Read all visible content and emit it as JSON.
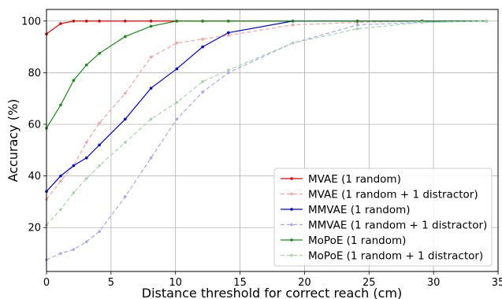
{
  "chart_data": {
    "type": "line",
    "xlabel": "Distance threshold for correct reach (cm)",
    "ylabel": "Accuracy (%)",
    "xlim": [
      0,
      35
    ],
    "ylim": [
      3,
      104.5
    ],
    "xticks": [
      0,
      5,
      10,
      15,
      20,
      25,
      30,
      35
    ],
    "yticks": [
      20,
      40,
      60,
      80,
      100
    ],
    "xtick_labels": [
      "0",
      "5",
      "10",
      "15",
      "20",
      "25",
      "30",
      "35"
    ],
    "ytick_labels": [
      "20",
      "40",
      "60",
      "80",
      "100"
    ],
    "grid": true,
    "legend_position": "bottom-right",
    "series": [
      {
        "name": "MVAE (1 random)",
        "color": "#e00000",
        "style": "solid",
        "x": [
          0,
          1.1,
          2.1,
          3.1,
          4.1,
          6.1,
          8.1,
          10.1,
          12.1,
          14.1,
          19.1,
          24.1,
          29.1,
          34.1
        ],
        "y": [
          95,
          99,
          100,
          100,
          100,
          100,
          100,
          100,
          100,
          100,
          100,
          100,
          100,
          100
        ]
      },
      {
        "name": "MVAE (1 random + 1 distractor)",
        "color": "#f4a4a4",
        "style": "dashed",
        "x": [
          0,
          1.1,
          2.1,
          3.1,
          4.1,
          6.1,
          8.1,
          10.1,
          12.1,
          14.1,
          19.1,
          24.1,
          29.1,
          34.1
        ],
        "y": [
          31,
          38,
          44,
          53,
          60.5,
          72,
          86,
          91.5,
          93,
          94.5,
          98.5,
          99.5,
          100,
          100
        ]
      },
      {
        "name": "MMVAE (1 random)",
        "color": "#0000e0",
        "style": "solid",
        "x": [
          0,
          1.1,
          2.1,
          3.1,
          4.1,
          6.1,
          8.1,
          10.1,
          12.1,
          14.1,
          19.1,
          24.1,
          29.1,
          34.1
        ],
        "y": [
          34,
          40,
          44,
          47,
          52,
          62,
          74,
          81.5,
          90,
          95.5,
          100,
          100,
          100,
          100
        ]
      },
      {
        "name": "MMVAE (1 random + 1 distractor)",
        "color": "#a8a8f4",
        "style": "dashed",
        "x": [
          0,
          1.1,
          2.1,
          3.1,
          4.1,
          6.1,
          8.1,
          10.1,
          12.1,
          14.1,
          19.1,
          24.1,
          29.1,
          34.1
        ],
        "y": [
          7.5,
          10,
          11.5,
          14.5,
          18.5,
          32,
          47,
          62,
          72.5,
          80,
          91.5,
          98.5,
          99.5,
          100
        ]
      },
      {
        "name": "MoPoE (1 random)",
        "color": "#1a8a1a",
        "style": "solid",
        "x": [
          0,
          1.1,
          2.1,
          3.1,
          4.1,
          6.1,
          8.1,
          10.1,
          12.1,
          14.1,
          19.1,
          24.1,
          29.1,
          34.1
        ],
        "y": [
          58.5,
          67.5,
          77,
          83,
          87.5,
          94,
          98,
          100,
          100,
          100,
          100,
          100,
          100,
          100
        ]
      },
      {
        "name": "MoPoE (1 random + 1 distractor)",
        "color": "#a6d6a6",
        "style": "dashed",
        "x": [
          0,
          1.1,
          2.1,
          3.1,
          4.1,
          6.1,
          8.1,
          10.1,
          12.1,
          14.1,
          19.1,
          24.1,
          29.1,
          34.1
        ],
        "y": [
          21,
          27,
          33.5,
          39,
          44,
          53,
          62,
          68.5,
          76.5,
          81,
          91.5,
          97,
          99.5,
          100
        ]
      }
    ]
  }
}
